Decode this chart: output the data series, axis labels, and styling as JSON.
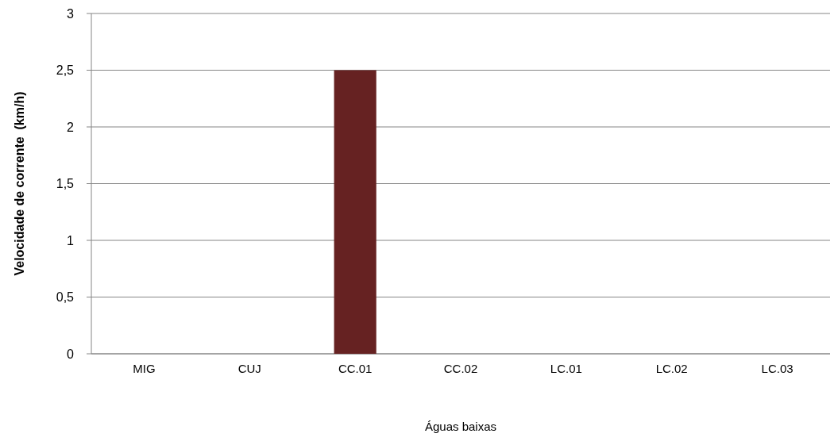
{
  "chart_data": {
    "type": "bar",
    "xlabel": "Águas baixas",
    "ylabel": "Velocidade de corrente  (km/h)",
    "categories": [
      "MIG",
      "CUJ",
      "CC.01",
      "CC.02",
      "LC.01",
      "LC.02",
      "LC.03"
    ],
    "values": [
      0,
      0,
      2.5,
      0,
      0,
      0,
      0
    ],
    "color": "#662222",
    "ylim": [
      0,
      3
    ],
    "yticks": [
      {
        "value": 0,
        "label": "0"
      },
      {
        "value": 0.5,
        "label": "0,5"
      },
      {
        "value": 1,
        "label": "1"
      },
      {
        "value": 1.5,
        "label": "1,5"
      },
      {
        "value": 2,
        "label": "2"
      },
      {
        "value": 2.5,
        "label": "2,5"
      },
      {
        "value": 3,
        "label": "3"
      }
    ],
    "grid": "y"
  }
}
